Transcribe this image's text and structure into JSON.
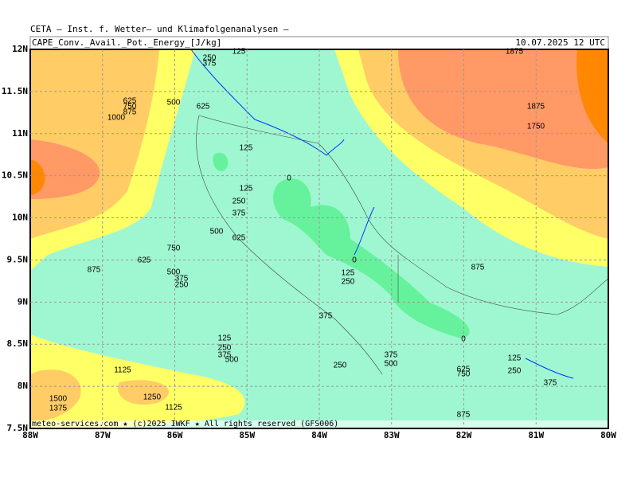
{
  "header": {
    "title": "CETA — Inst. f. Wetter— und Klimafolgenanalysen —",
    "field": "CAPE_Conv._Avail._Pot._Energy_[J/kg]",
    "time": "10.07.2025 12 UTC"
  },
  "footer": "meteo-services.com ★ (c)2025 IWKF ★ All rights reserved (GFS006)",
  "lat_labels": [
    "12N",
    "11.5N",
    "11N",
    "10.5N",
    "10N",
    "9.5N",
    "9N",
    "8.5N",
    "8N",
    "7.5N"
  ],
  "lon_labels": [
    "88W",
    "87W",
    "86W",
    "85W",
    "84W",
    "83W",
    "82W",
    "81W",
    "80W"
  ],
  "contour_labels": [
    125,
    250,
    375,
    625,
    750,
    875,
    1000,
    500,
    625,
    125,
    0,
    125,
    250,
    375,
    500,
    625,
    750,
    625,
    875,
    500,
    375,
    250,
    0,
    125,
    250,
    875,
    375,
    125,
    250,
    375,
    500,
    250,
    375,
    500,
    0,
    625,
    750,
    125,
    250,
    375,
    1125,
    1500,
    1375,
    1250,
    1125,
    875,
    1875,
    1875,
    1750
  ]
}
